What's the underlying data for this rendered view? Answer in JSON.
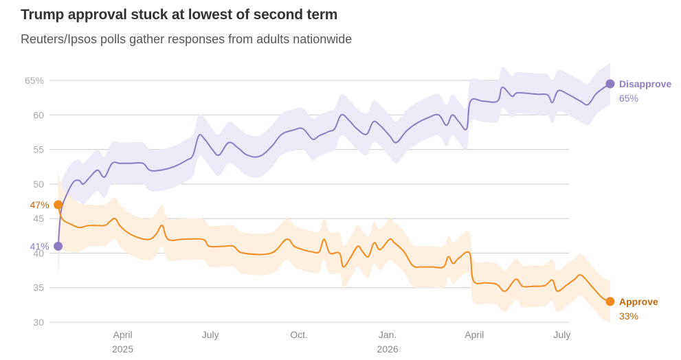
{
  "title": "Trump approval stuck at lowest of second term",
  "subtitle": "Reuters/Ipsos polls gather responses from adults nationwide",
  "colors": {
    "disapprove": "#8e7cc3",
    "approve": "#f08c1f",
    "approve_text": "#c0650a",
    "grid": "#cccccc"
  },
  "chart_data": {
    "type": "line",
    "y_ticks": [
      {
        "value": 65,
        "label": "65%"
      },
      {
        "value": 60,
        "label": "60"
      },
      {
        "value": 55,
        "label": "55"
      },
      {
        "value": 50,
        "label": "50"
      },
      {
        "value": 45,
        "label": "45"
      },
      {
        "value": 40,
        "label": "40"
      },
      {
        "value": 35,
        "label": "35"
      },
      {
        "value": 30,
        "label": "30"
      }
    ],
    "ylim": [
      30,
      65
    ],
    "x_ticks": [
      {
        "date": "2025-04-01",
        "label": "April",
        "year": "2025"
      },
      {
        "date": "2025-07-01",
        "label": "July",
        "year": ""
      },
      {
        "date": "2025-10-01",
        "label": "Oct.",
        "year": ""
      },
      {
        "date": "2026-01-01",
        "label": "Jan.",
        "year": "2026"
      },
      {
        "date": "2026-04-01",
        "label": "April",
        "year": ""
      },
      {
        "date": "2026-07-01",
        "label": "July",
        "year": ""
      }
    ],
    "xlim": [
      "2025-01-15",
      "2026-08-25"
    ],
    "series": [
      {
        "name": "Disapprove",
        "key": "disapprove",
        "end_label": "65%",
        "start_label": "41%",
        "points": [
          [
            "2025-01-24",
            41
          ],
          [
            "2025-01-27",
            46
          ],
          [
            "2025-02-02",
            48.5
          ],
          [
            "2025-02-09",
            50.3
          ],
          [
            "2025-02-15",
            50.5
          ],
          [
            "2025-02-19",
            50
          ],
          [
            "2025-02-26",
            51
          ],
          [
            "2025-03-06",
            52
          ],
          [
            "2025-03-13",
            51
          ],
          [
            "2025-03-21",
            53
          ],
          [
            "2025-03-29",
            53
          ],
          [
            "2025-04-10",
            53
          ],
          [
            "2025-04-22",
            53
          ],
          [
            "2025-04-29",
            52
          ],
          [
            "2025-05-10",
            52
          ],
          [
            "2025-05-24",
            52.5
          ],
          [
            "2025-06-07",
            53.5
          ],
          [
            "2025-06-13",
            54.2
          ],
          [
            "2025-06-19",
            57
          ],
          [
            "2025-06-25",
            56.5
          ],
          [
            "2025-07-03",
            55
          ],
          [
            "2025-07-10",
            54.2
          ],
          [
            "2025-07-20",
            56
          ],
          [
            "2025-07-30",
            55.2
          ],
          [
            "2025-08-08",
            54.2
          ],
          [
            "2025-08-21",
            54
          ],
          [
            "2025-09-03",
            55.5
          ],
          [
            "2025-09-13",
            57.2
          ],
          [
            "2025-09-25",
            57.8
          ],
          [
            "2025-10-05",
            58
          ],
          [
            "2025-10-15",
            56.5
          ],
          [
            "2025-10-22",
            57
          ],
          [
            "2025-11-01",
            57.6
          ],
          [
            "2025-11-07",
            58
          ],
          [
            "2025-11-14",
            60
          ],
          [
            "2025-11-22",
            59.2
          ],
          [
            "2025-11-30",
            58
          ],
          [
            "2025-12-10",
            57.2
          ],
          [
            "2025-12-17",
            59
          ],
          [
            "2025-12-24",
            58.5
          ],
          [
            "2026-01-03",
            57
          ],
          [
            "2026-01-10",
            56
          ],
          [
            "2026-01-20",
            57.6
          ],
          [
            "2026-01-30",
            58.7
          ],
          [
            "2026-02-12",
            59.6
          ],
          [
            "2026-02-23",
            60
          ],
          [
            "2026-03-03",
            58.5
          ],
          [
            "2026-03-09",
            60
          ],
          [
            "2026-03-16",
            59
          ],
          [
            "2026-03-24",
            58
          ],
          [
            "2026-03-28",
            62
          ],
          [
            "2026-04-10",
            62
          ],
          [
            "2026-04-25",
            62
          ],
          [
            "2026-04-30",
            64
          ],
          [
            "2026-05-10",
            62.7
          ],
          [
            "2026-05-16",
            63.2
          ],
          [
            "2026-06-05",
            63
          ],
          [
            "2026-06-16",
            62.9
          ],
          [
            "2026-06-21",
            61.8
          ],
          [
            "2026-06-27",
            63.5
          ],
          [
            "2026-07-07",
            63
          ],
          [
            "2026-07-20",
            62
          ],
          [
            "2026-07-28",
            61.5
          ],
          [
            "2026-08-05",
            63
          ],
          [
            "2026-08-14",
            64
          ],
          [
            "2026-08-20",
            64.5
          ]
        ],
        "band_width": [
          4.5,
          4,
          3.5,
          3,
          3,
          3,
          3,
          3,
          3,
          3,
          3,
          3,
          3,
          3,
          3,
          3,
          3,
          3,
          3,
          3,
          3,
          3,
          3,
          3,
          3,
          3,
          3,
          3,
          3,
          3,
          3,
          3,
          3,
          3,
          3,
          3,
          3,
          3,
          3,
          3,
          3,
          3,
          3,
          3,
          3,
          3,
          3,
          3,
          3,
          3,
          3,
          3,
          3,
          3,
          3,
          3,
          3,
          3,
          3,
          3,
          3,
          3,
          3,
          3,
          3,
          3
        ]
      },
      {
        "name": "Approve",
        "key": "approve",
        "end_label": "33%",
        "start_label": "47%",
        "points": [
          [
            "2025-01-24",
            47
          ],
          [
            "2025-01-28",
            45
          ],
          [
            "2025-02-06",
            44.2
          ],
          [
            "2025-02-15",
            43.7
          ],
          [
            "2025-02-25",
            44
          ],
          [
            "2025-03-13",
            44
          ],
          [
            "2025-03-18",
            44.5
          ],
          [
            "2025-03-24",
            45
          ],
          [
            "2025-03-29",
            44
          ],
          [
            "2025-04-06",
            43
          ],
          [
            "2025-04-18",
            42.2
          ],
          [
            "2025-04-29",
            42
          ],
          [
            "2025-05-06",
            42.8
          ],
          [
            "2025-05-12",
            44
          ],
          [
            "2025-05-18",
            42
          ],
          [
            "2025-06-02",
            42
          ],
          [
            "2025-06-23",
            42
          ],
          [
            "2025-06-30",
            41
          ],
          [
            "2025-07-16",
            41
          ],
          [
            "2025-07-25",
            41
          ],
          [
            "2025-08-04",
            40
          ],
          [
            "2025-09-02",
            40
          ],
          [
            "2025-09-18",
            42
          ],
          [
            "2025-09-26",
            41
          ],
          [
            "2025-10-05",
            40.5
          ],
          [
            "2025-10-14",
            40.2
          ],
          [
            "2025-10-22",
            40.2
          ],
          [
            "2025-10-27",
            42
          ],
          [
            "2025-11-02",
            40
          ],
          [
            "2025-11-12",
            40
          ],
          [
            "2025-11-16",
            38
          ],
          [
            "2025-11-24",
            39.5
          ],
          [
            "2025-12-01",
            41
          ],
          [
            "2025-12-06",
            40.2
          ],
          [
            "2025-12-12",
            39.5
          ],
          [
            "2025-12-18",
            41.5
          ],
          [
            "2025-12-24",
            40.5
          ],
          [
            "2026-01-03",
            42
          ],
          [
            "2026-01-08",
            41.5
          ],
          [
            "2026-01-18",
            40.2
          ],
          [
            "2026-01-27",
            38.2
          ],
          [
            "2026-02-05",
            38
          ],
          [
            "2026-02-16",
            38
          ],
          [
            "2026-02-28",
            38
          ],
          [
            "2026-03-05",
            39.5
          ],
          [
            "2026-03-10",
            38.5
          ],
          [
            "2026-03-16",
            39.3
          ],
          [
            "2026-03-27",
            40
          ],
          [
            "2026-03-31",
            36
          ],
          [
            "2026-04-13",
            35.7
          ],
          [
            "2026-04-24",
            35.5
          ],
          [
            "2026-05-03",
            34.5
          ],
          [
            "2026-05-14",
            36.2
          ],
          [
            "2026-05-21",
            35.2
          ],
          [
            "2026-06-01",
            35.2
          ],
          [
            "2026-06-13",
            35.3
          ],
          [
            "2026-06-21",
            36.1
          ],
          [
            "2026-06-26",
            34.5
          ],
          [
            "2026-07-05",
            35.3
          ],
          [
            "2026-07-14",
            36.2
          ],
          [
            "2026-07-21",
            36.8
          ],
          [
            "2026-08-02",
            35
          ],
          [
            "2026-08-12",
            33.5
          ],
          [
            "2026-08-20",
            33
          ]
        ],
        "band_width": [
          5,
          4.5,
          4,
          3.5,
          3,
          3,
          3,
          3,
          3,
          3,
          3,
          3,
          3,
          3,
          3,
          3,
          3,
          3,
          3,
          3,
          3,
          3,
          3,
          3,
          3,
          3,
          3,
          3,
          3,
          3,
          3,
          3,
          3,
          3,
          3,
          3,
          3,
          3,
          3,
          3,
          3,
          3,
          3,
          3,
          3,
          3,
          3,
          3,
          3,
          3,
          3,
          3,
          3,
          3,
          3,
          3,
          3,
          3,
          3,
          3,
          3,
          3,
          3,
          3
        ]
      }
    ]
  }
}
